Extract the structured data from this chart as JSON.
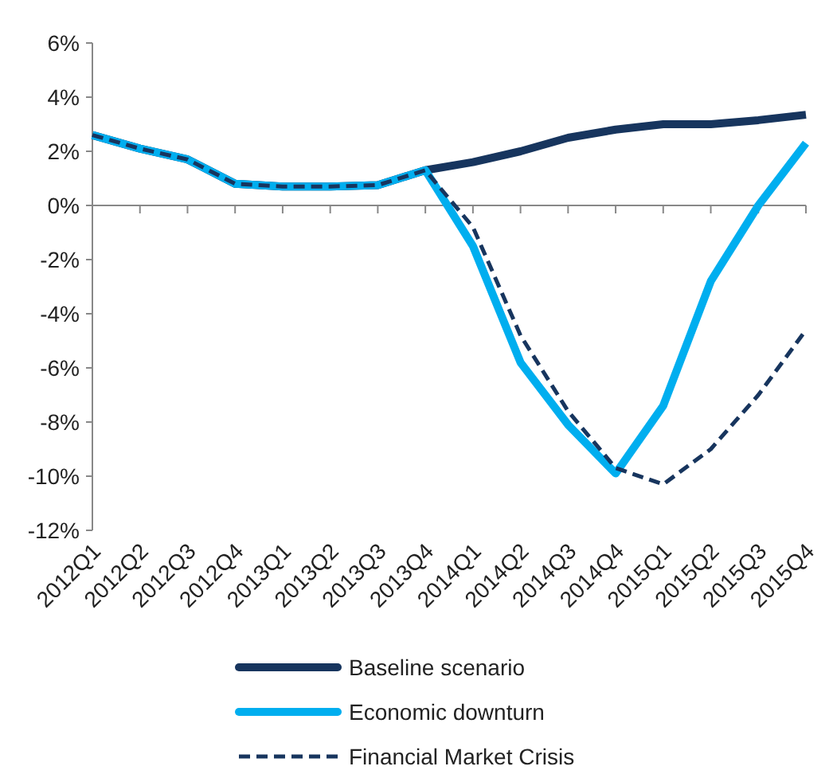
{
  "chart_data": {
    "type": "line",
    "categories": [
      "2012Q1",
      "2012Q2",
      "2012Q3",
      "2012Q4",
      "2013Q1",
      "2013Q2",
      "2013Q3",
      "2013Q4",
      "2014Q1",
      "2014Q2",
      "2014Q3",
      "2014Q4",
      "2015Q1",
      "2015Q2",
      "2015Q3",
      "2015Q4"
    ],
    "series": [
      {
        "name": "Baseline scenario",
        "color": "#17355e",
        "line_style": "solid",
        "values": [
          2.6,
          2.1,
          1.7,
          0.8,
          0.7,
          0.7,
          0.75,
          1.3,
          1.6,
          2.0,
          2.5,
          2.8,
          3.0,
          3.0,
          3.15,
          3.35
        ]
      },
      {
        "name": "Economic downturn",
        "color": "#00aeef",
        "line_style": "solid",
        "values": [
          2.6,
          2.1,
          1.7,
          0.8,
          0.7,
          0.7,
          0.75,
          1.3,
          -1.5,
          -5.8,
          -8.1,
          -9.9,
          -7.4,
          -2.8,
          0.0,
          2.3
        ]
      },
      {
        "name": "Financial Market Crisis",
        "color": "#17355e",
        "line_style": "dashed",
        "values": [
          2.6,
          2.1,
          1.7,
          0.8,
          0.7,
          0.7,
          0.75,
          1.3,
          -0.8,
          -4.8,
          -7.6,
          -9.7,
          -10.3,
          -9.0,
          -7.0,
          -4.6
        ]
      }
    ],
    "ylim": [
      -12,
      6
    ],
    "yticks": [
      {
        "value": -12,
        "label": "-12%"
      },
      {
        "value": -10,
        "label": "-10%"
      },
      {
        "value": -8,
        "label": "-8%"
      },
      {
        "value": -6,
        "label": "-6%"
      },
      {
        "value": -4,
        "label": "-4%"
      },
      {
        "value": -2,
        "label": "-2%"
      },
      {
        "value": 0,
        "label": "0%"
      },
      {
        "value": 2,
        "label": "2%"
      },
      {
        "value": 4,
        "label": "4%"
      },
      {
        "value": 6,
        "label": "6%"
      }
    ],
    "legend": "bottom",
    "marker": "none"
  }
}
